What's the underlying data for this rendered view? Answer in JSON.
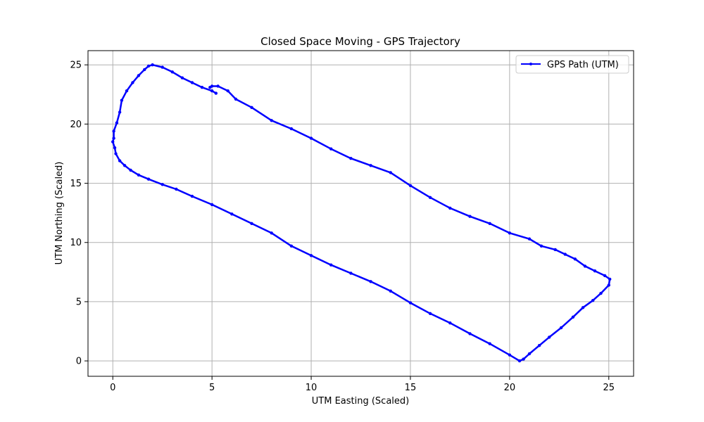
{
  "chart_data": {
    "type": "line",
    "title": "Closed Space Moving - GPS Trajectory",
    "xlabel": "UTM Easting (Scaled)",
    "ylabel": "UTM Northing (Scaled)",
    "xlim": [
      -1.25,
      26.25
    ],
    "ylim": [
      -1.3,
      26.2
    ],
    "xticks": [
      0,
      5,
      10,
      15,
      20,
      25
    ],
    "yticks": [
      0,
      5,
      10,
      15,
      20,
      25
    ],
    "grid": true,
    "legend": {
      "position": "top-right"
    },
    "series": [
      {
        "name": "GPS Path (UTM)",
        "color": "#0000ff",
        "marker": "dot",
        "points": [
          [
            5.2,
            22.6
          ],
          [
            5.0,
            22.8
          ],
          [
            4.5,
            23.1
          ],
          [
            4.0,
            23.5
          ],
          [
            3.5,
            23.9
          ],
          [
            3.0,
            24.4
          ],
          [
            2.5,
            24.8
          ],
          [
            2.0,
            25.0
          ],
          [
            1.8,
            24.9
          ],
          [
            1.6,
            24.6
          ],
          [
            1.3,
            24.1
          ],
          [
            1.0,
            23.5
          ],
          [
            0.7,
            22.8
          ],
          [
            0.45,
            22.0
          ],
          [
            0.35,
            21.0
          ],
          [
            0.2,
            20.1
          ],
          [
            0.05,
            19.4
          ],
          [
            0.05,
            18.8
          ],
          [
            0.0,
            18.5
          ],
          [
            0.1,
            18.0
          ],
          [
            0.15,
            17.5
          ],
          [
            0.35,
            16.9
          ],
          [
            0.6,
            16.5
          ],
          [
            0.9,
            16.1
          ],
          [
            1.3,
            15.7
          ],
          [
            1.8,
            15.35
          ],
          [
            2.5,
            14.9
          ],
          [
            3.2,
            14.5
          ],
          [
            4.0,
            13.9
          ],
          [
            5.0,
            13.2
          ],
          [
            6.0,
            12.4
          ],
          [
            7.0,
            11.6
          ],
          [
            8.0,
            10.8
          ],
          [
            9.0,
            9.7
          ],
          [
            10.0,
            8.9
          ],
          [
            11.0,
            8.1
          ],
          [
            12.0,
            7.4
          ],
          [
            13.0,
            6.7
          ],
          [
            14.0,
            5.9
          ],
          [
            15.0,
            4.9
          ],
          [
            16.0,
            4.0
          ],
          [
            17.0,
            3.2
          ],
          [
            18.0,
            2.3
          ],
          [
            19.0,
            1.45
          ],
          [
            20.0,
            0.5
          ],
          [
            20.5,
            0.0
          ],
          [
            20.7,
            0.15
          ],
          [
            21.0,
            0.6
          ],
          [
            21.5,
            1.3
          ],
          [
            22.0,
            2.0
          ],
          [
            22.6,
            2.8
          ],
          [
            23.2,
            3.7
          ],
          [
            23.7,
            4.5
          ],
          [
            24.2,
            5.1
          ],
          [
            24.6,
            5.7
          ],
          [
            25.0,
            6.4
          ],
          [
            25.05,
            6.9
          ],
          [
            24.8,
            7.2
          ],
          [
            24.3,
            7.6
          ],
          [
            23.8,
            8.0
          ],
          [
            23.3,
            8.6
          ],
          [
            22.8,
            9.0
          ],
          [
            22.3,
            9.4
          ],
          [
            21.6,
            9.7
          ],
          [
            21.0,
            10.3
          ],
          [
            20.0,
            10.8
          ],
          [
            19.0,
            11.6
          ],
          [
            18.0,
            12.2
          ],
          [
            17.0,
            12.9
          ],
          [
            16.0,
            13.8
          ],
          [
            15.0,
            14.8
          ],
          [
            14.0,
            15.9
          ],
          [
            13.0,
            16.5
          ],
          [
            12.0,
            17.1
          ],
          [
            11.0,
            17.9
          ],
          [
            10.0,
            18.8
          ],
          [
            9.0,
            19.6
          ],
          [
            8.0,
            20.3
          ],
          [
            7.0,
            21.4
          ],
          [
            6.2,
            22.1
          ],
          [
            5.8,
            22.8
          ],
          [
            5.3,
            23.2
          ],
          [
            5.0,
            23.2
          ],
          [
            4.9,
            23.1
          ]
        ]
      }
    ]
  }
}
